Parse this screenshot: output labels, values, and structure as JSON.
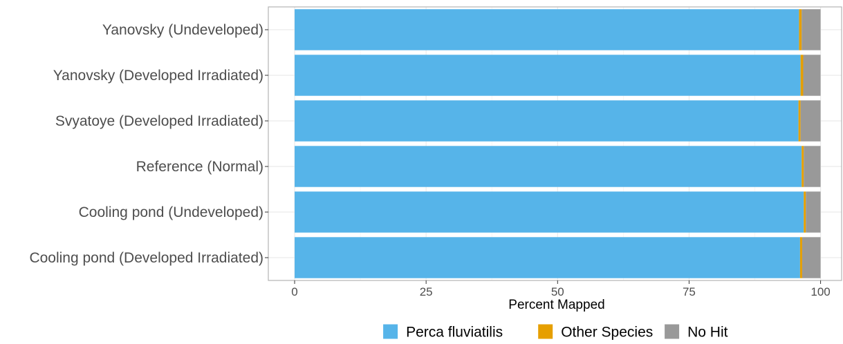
{
  "chart_data": {
    "type": "bar",
    "orientation": "horizontal",
    "stacked": true,
    "categories": [
      "Yanovsky (Undeveloped)",
      "Yanovsky (Developed Irradiated)",
      "Svyatoye (Developed Irradiated)",
      "Reference (Normal)",
      "Cooling pond (Undeveloped)",
      "Cooling pond (Developed Irradiated)"
    ],
    "series": [
      {
        "name": "Perca fluviatilis",
        "color": "#56B4E9",
        "values": [
          95.9,
          96.2,
          95.8,
          96.4,
          96.8,
          96.1
        ]
      },
      {
        "name": "Other Species",
        "color": "#E69F00",
        "values": [
          0.5,
          0.5,
          0.4,
          0.4,
          0.4,
          0.4
        ]
      },
      {
        "name": "No Hit",
        "color": "#999999",
        "values": [
          3.6,
          3.3,
          3.8,
          3.2,
          2.8,
          3.5
        ]
      }
    ],
    "xlabel": "Percent Mapped",
    "ylabel": "",
    "xlim": [
      -5,
      104
    ],
    "xticks": [
      "0",
      "25",
      "50",
      "75",
      "100"
    ],
    "grid": true,
    "legend_position": "bottom"
  }
}
